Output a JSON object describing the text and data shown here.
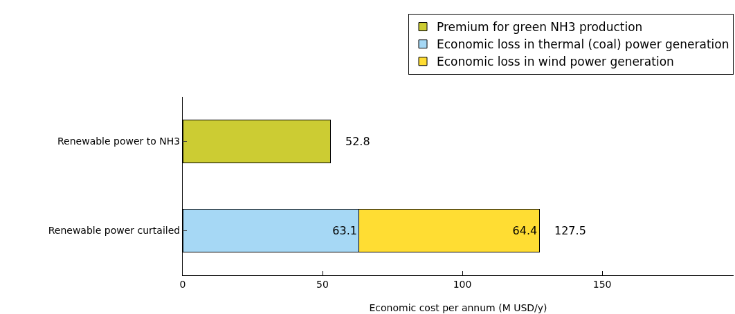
{
  "chart_data": {
    "type": "bar",
    "orientation": "horizontal",
    "stacked": true,
    "xlabel": "Economic cost per annum (M USD/y)",
    "categories": [
      "Renewable power to NH3",
      "Renewable power curtailed"
    ],
    "series": [
      {
        "name": "Premium for green NH3 production",
        "color": "#cccc33",
        "values": [
          52.8,
          null
        ]
      },
      {
        "name": "Economic loss in thermal (coal) power generation",
        "color": "#a6d8f5",
        "values": [
          null,
          63.1
        ],
        "value_labels": [
          null,
          "63.1"
        ]
      },
      {
        "name": "Economic loss in wind power generation",
        "color": "#ffdd33",
        "values": [
          null,
          64.4
        ],
        "value_labels": [
          null,
          "64.4"
        ]
      }
    ],
    "totals": [
      "52.8",
      "127.5"
    ],
    "xlim": [
      0,
      197
    ],
    "xticks": [
      0,
      50,
      100,
      150
    ],
    "grid": false,
    "legend": "top right"
  }
}
